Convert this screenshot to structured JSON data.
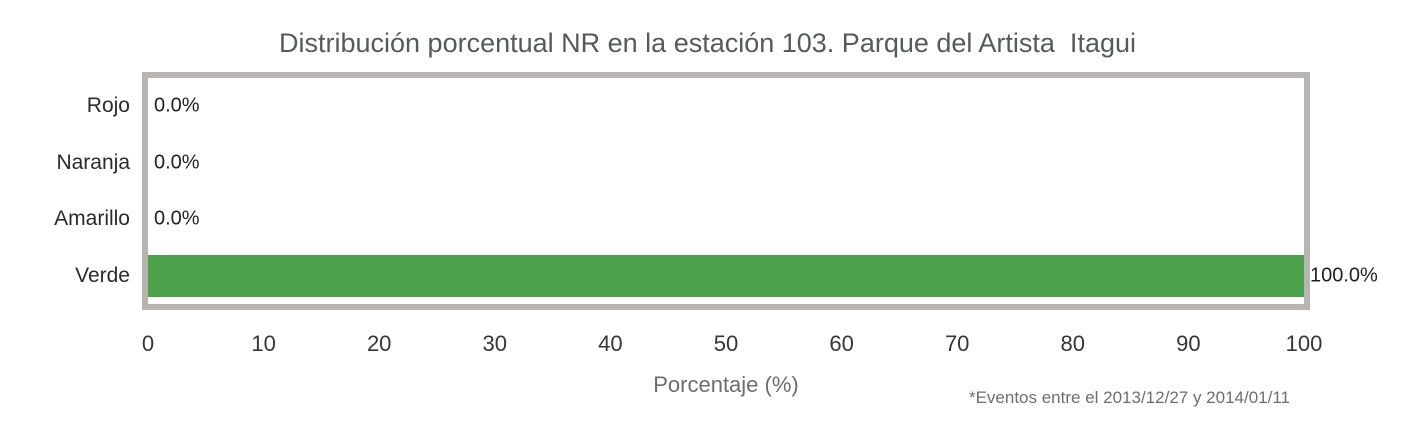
{
  "chart_data": {
    "type": "bar",
    "orientation": "horizontal",
    "title": "Distribución porcentual NR en la estación 103. Parque del Artista  Itagui",
    "categories": [
      "Rojo",
      "Naranja",
      "Amarillo",
      "Verde"
    ],
    "values": [
      0.0,
      0.0,
      0.0,
      100.0
    ],
    "value_labels": [
      "0.0%",
      "0.0%",
      "0.0%",
      "100.0%"
    ],
    "xlabel": "Porcentaje (%)",
    "ylabel": "",
    "xlim": [
      0,
      100
    ],
    "xticks": [
      0,
      10,
      20,
      30,
      40,
      50,
      60,
      70,
      80,
      90,
      100
    ],
    "grid": false,
    "legend": false,
    "footnote": "*Eventos entre el 2013/12/27 y 2014/01/11"
  },
  "colors": {
    "bar": "#4ba24a",
    "plot_border": "#b8b4b1",
    "title_text": "#58595b",
    "axis_text": "#363636",
    "muted_text": "#6d6d6d"
  }
}
